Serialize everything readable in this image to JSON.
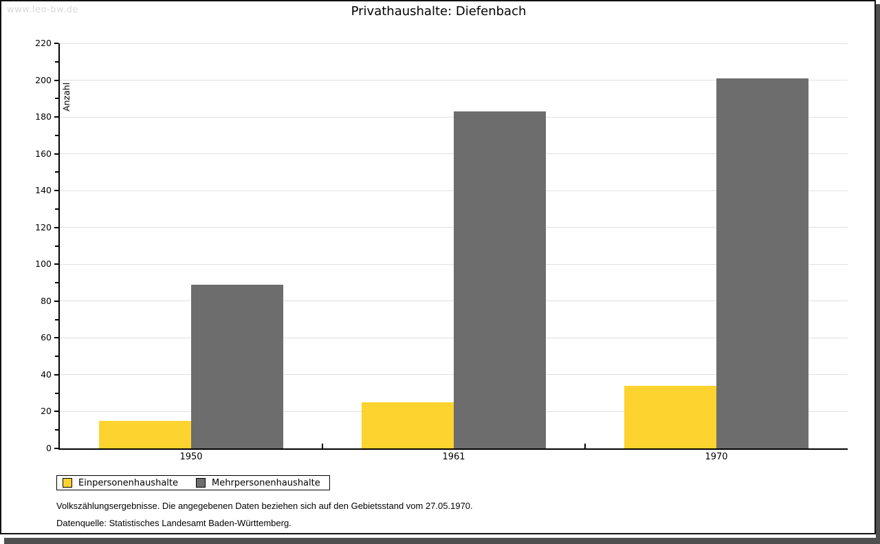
{
  "watermark": "www.leo-bw.de",
  "title": "Privathaushalte: Diefenbach",
  "chart_data": {
    "type": "bar",
    "title": "Privathaushalte: Diefenbach",
    "categories": [
      "1950",
      "1961",
      "1970"
    ],
    "series": [
      {
        "name": "Einpersonenhaushalte",
        "color": "#fcd32f",
        "values": [
          15,
          25,
          34
        ]
      },
      {
        "name": "Mehrpersonenhaushalte",
        "color": "#6d6d6d",
        "values": [
          89,
          183,
          201
        ]
      }
    ],
    "xlabel": "",
    "ylabel": "Anzahl",
    "ylim": [
      0,
      220
    ],
    "ytick_step": 20,
    "minor_tick_step": 10,
    "grid": true,
    "gridline_color": "#e0e0e0",
    "legend_position": "bottom-left"
  },
  "footnotes": [
    "Volkszählungsergebnisse. Die angegebenen Daten beziehen sich auf den Gebietsstand vom 27.05.1970.",
    "Datenquelle: Statistisches Landesamt Baden-Württemberg."
  ],
  "colors": {
    "background": "#ffffff",
    "axis": "#000000",
    "watermark": "#d9d9d9",
    "frame_border": "#111111",
    "shadow": "#4f4f4f"
  }
}
